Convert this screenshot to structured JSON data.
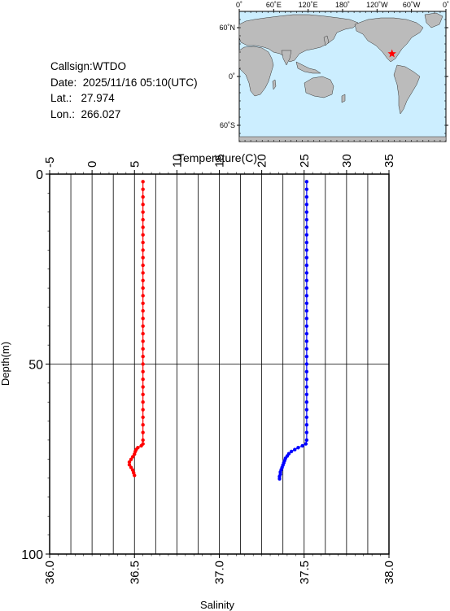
{
  "station": {
    "callsign_label": "Callsign:WTDO",
    "date_label": "Date:  2025/11/16 05:10(UTC)",
    "lat_label": "Lat.:   27.974",
    "lon_label": "Lon.:  266.027"
  },
  "map": {
    "top_ticks": [
      "0˚",
      "60˚E",
      "120˚E",
      "180˚",
      "120˚W",
      "60˚W",
      "0˚"
    ],
    "left_ticks": [
      "60˚N",
      "0˚",
      "60˚S"
    ],
    "ocean_color": "#cceeff",
    "land_color": "#bbbbbb",
    "marker_color": "#ff0000",
    "marker_lon": 266.027,
    "marker_lat": 27.974
  },
  "chart_data": {
    "type": "scatter",
    "ylabel": "Depth(m)",
    "ylim": [
      0,
      100
    ],
    "y_ticks": [
      "0",
      "50",
      "100"
    ],
    "y_reversed": true,
    "temperature_axis": {
      "label": "Temperature(C)",
      "range": [
        -5,
        35
      ],
      "ticks": [
        "-5",
        "0",
        "5",
        "10",
        "15",
        "20",
        "25",
        "30",
        "35"
      ]
    },
    "salinity_axis": {
      "label": "Salinity",
      "range": [
        36.0,
        38.0
      ],
      "ticks": [
        "36.0",
        "36.5",
        "37.0",
        "37.5",
        "38.0"
      ]
    },
    "grid": true,
    "series": [
      {
        "color": "#ff0000",
        "axis": "salinity",
        "points": [
          [
            36.55,
            2
          ],
          [
            36.55,
            4
          ],
          [
            36.55,
            6
          ],
          [
            36.55,
            8
          ],
          [
            36.55,
            10
          ],
          [
            36.55,
            12
          ],
          [
            36.55,
            14
          ],
          [
            36.55,
            16
          ],
          [
            36.55,
            18
          ],
          [
            36.55,
            20
          ],
          [
            36.55,
            22
          ],
          [
            36.55,
            24
          ],
          [
            36.55,
            26
          ],
          [
            36.55,
            28
          ],
          [
            36.55,
            30
          ],
          [
            36.55,
            32
          ],
          [
            36.55,
            34
          ],
          [
            36.55,
            36
          ],
          [
            36.55,
            38
          ],
          [
            36.55,
            40
          ],
          [
            36.55,
            42
          ],
          [
            36.55,
            44
          ],
          [
            36.55,
            46
          ],
          [
            36.55,
            48
          ],
          [
            36.55,
            50
          ],
          [
            36.55,
            52
          ],
          [
            36.55,
            54
          ],
          [
            36.55,
            56
          ],
          [
            36.55,
            58
          ],
          [
            36.55,
            60
          ],
          [
            36.55,
            62
          ],
          [
            36.55,
            64
          ],
          [
            36.55,
            66
          ],
          [
            36.55,
            68
          ],
          [
            36.55,
            70
          ],
          [
            36.55,
            71
          ],
          [
            36.54,
            71.5
          ],
          [
            36.52,
            72
          ],
          [
            36.51,
            72.5
          ],
          [
            36.505,
            73
          ],
          [
            36.5,
            73.7
          ],
          [
            36.49,
            74.4
          ],
          [
            36.48,
            75.1
          ],
          [
            36.47,
            75.8
          ],
          [
            36.47,
            76.5
          ],
          [
            36.48,
            77.2
          ],
          [
            36.49,
            77.9
          ],
          [
            36.495,
            78.6
          ],
          [
            36.5,
            79.3
          ]
        ]
      },
      {
        "color": "#0000ff",
        "axis": "temperature",
        "points": [
          [
            25.3,
            2
          ],
          [
            25.3,
            4
          ],
          [
            25.3,
            6
          ],
          [
            25.3,
            8
          ],
          [
            25.3,
            10
          ],
          [
            25.3,
            12
          ],
          [
            25.3,
            14
          ],
          [
            25.3,
            16
          ],
          [
            25.3,
            18
          ],
          [
            25.3,
            20
          ],
          [
            25.3,
            22
          ],
          [
            25.3,
            24
          ],
          [
            25.3,
            26
          ],
          [
            25.3,
            28
          ],
          [
            25.3,
            30
          ],
          [
            25.3,
            32
          ],
          [
            25.3,
            34
          ],
          [
            25.3,
            36
          ],
          [
            25.3,
            38
          ],
          [
            25.3,
            40
          ],
          [
            25.3,
            42
          ],
          [
            25.3,
            44
          ],
          [
            25.3,
            46
          ],
          [
            25.3,
            48
          ],
          [
            25.3,
            50
          ],
          [
            25.3,
            52
          ],
          [
            25.3,
            54
          ],
          [
            25.3,
            56
          ],
          [
            25.3,
            58
          ],
          [
            25.3,
            60
          ],
          [
            25.3,
            62
          ],
          [
            25.3,
            64
          ],
          [
            25.3,
            66
          ],
          [
            25.3,
            68
          ],
          [
            25.3,
            70
          ],
          [
            25.2,
            71
          ],
          [
            24.8,
            71.5
          ],
          [
            24.3,
            72
          ],
          [
            23.9,
            72.5
          ],
          [
            23.5,
            73
          ],
          [
            23.2,
            73.6
          ],
          [
            23.0,
            74.2
          ],
          [
            22.8,
            74.8
          ],
          [
            22.7,
            75.4
          ],
          [
            22.6,
            76.0
          ],
          [
            22.5,
            76.6
          ],
          [
            22.4,
            77.2
          ],
          [
            22.3,
            77.8
          ],
          [
            22.2,
            78.4
          ],
          [
            22.2,
            79.0
          ],
          [
            22.1,
            79.6
          ],
          [
            22.1,
            80.2
          ]
        ]
      }
    ]
  }
}
